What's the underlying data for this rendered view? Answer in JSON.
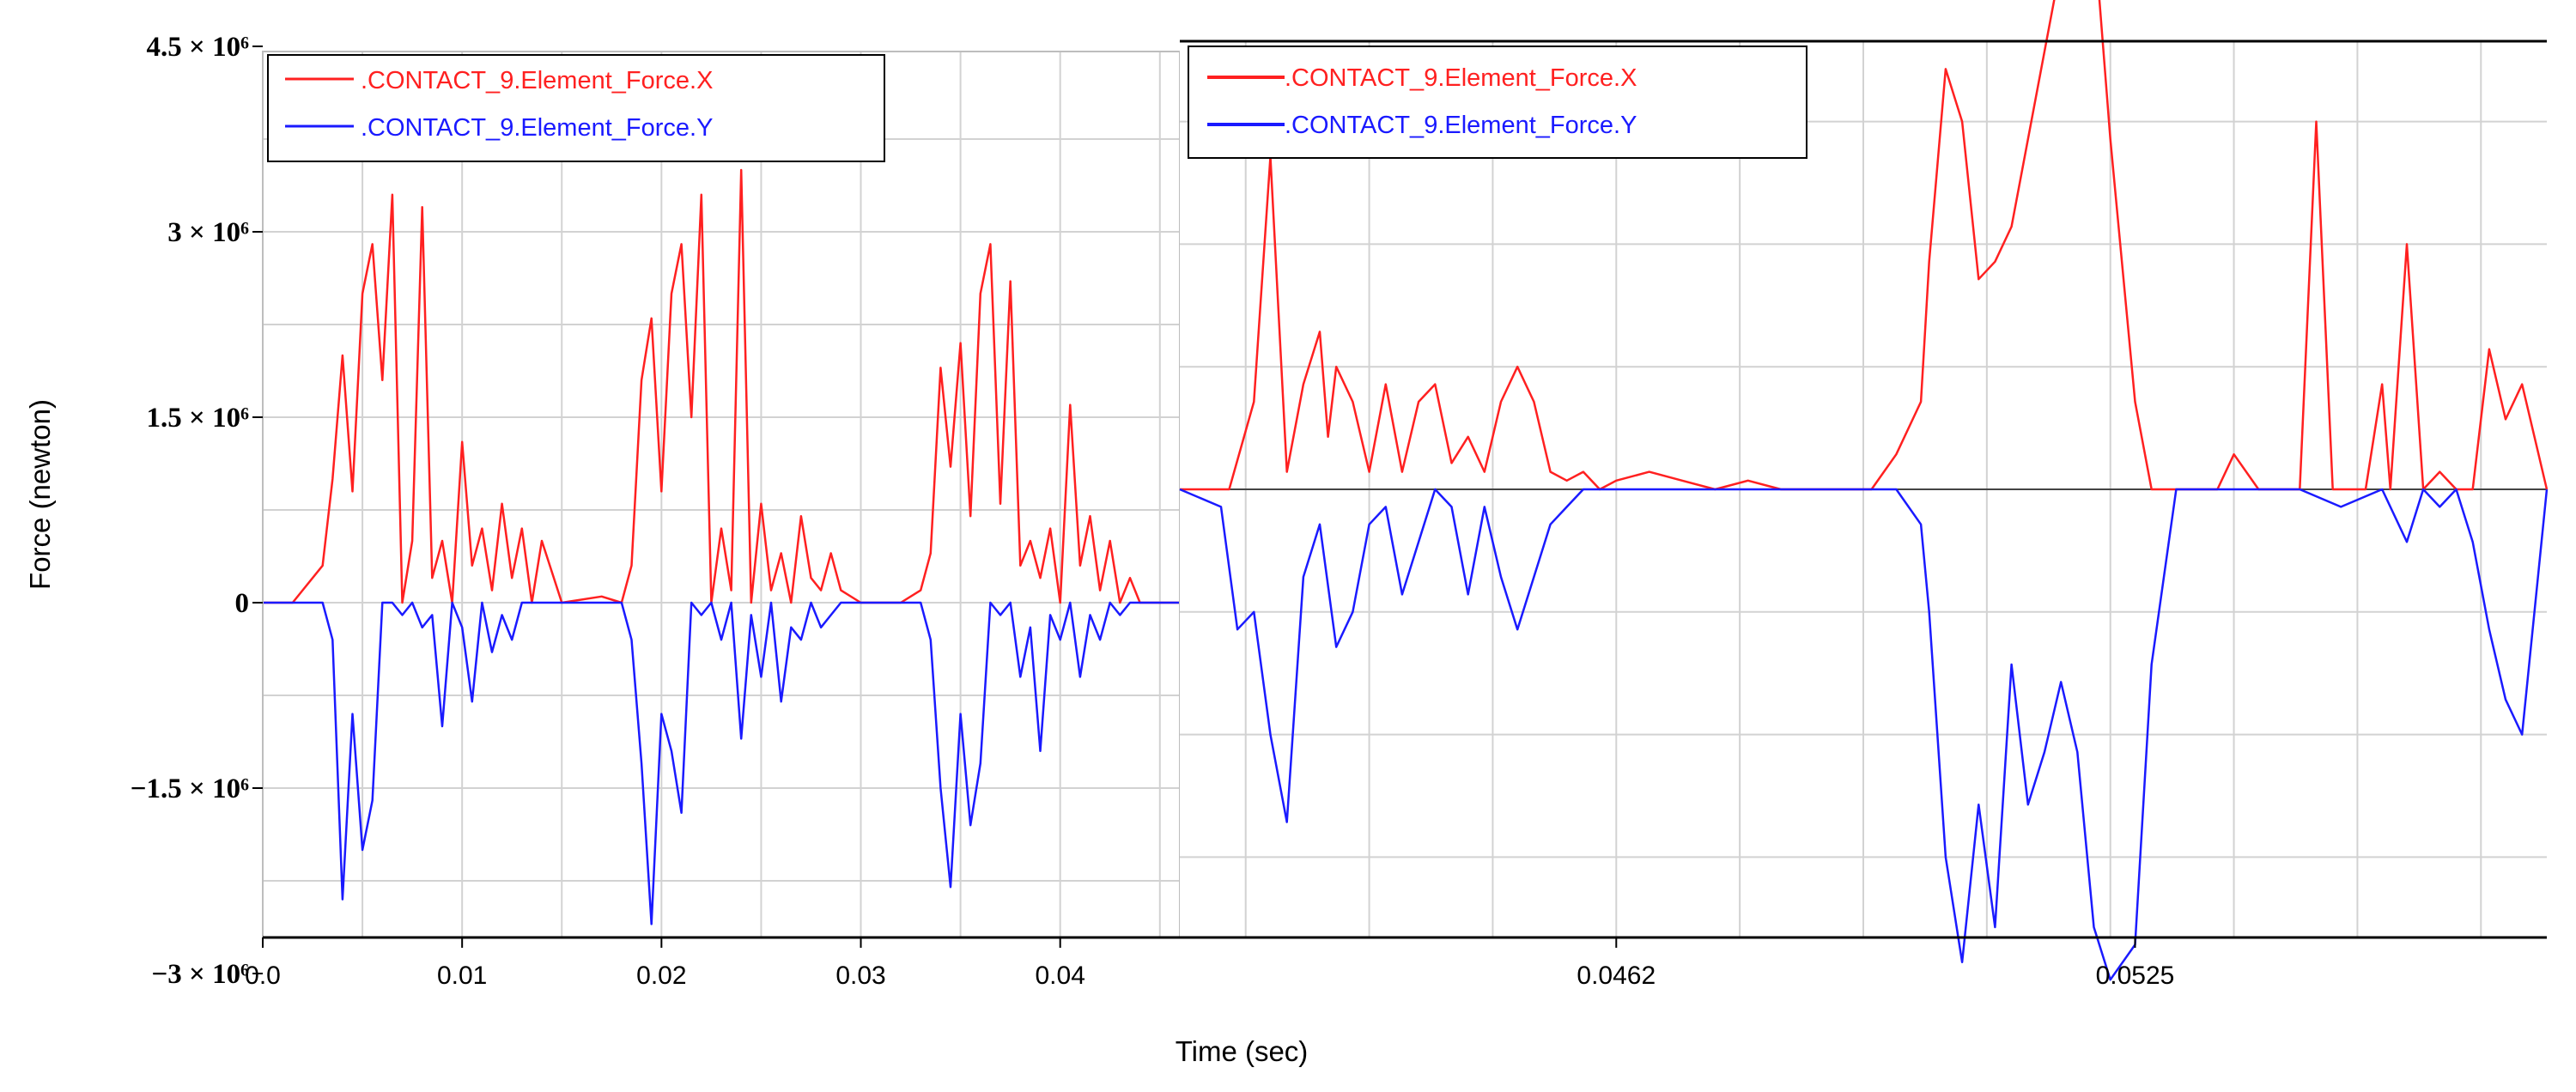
{
  "chart_data": {
    "type": "line",
    "title": "",
    "xlabel": "Time (sec)",
    "ylabel": "Force (newton)",
    "grid": true,
    "yticks": [
      "4.5 × 10⁶",
      "3 × 10⁶",
      "1.5 × 10⁶",
      "0",
      "−1.5 × 10⁶",
      "−3 × 10⁶"
    ],
    "ylim": [
      -3000000,
      4500000
    ],
    "panels": [
      {
        "id": "left",
        "xlim": [
          0,
          0.046
        ],
        "xticks": [
          "0.0",
          "0.01",
          "0.02",
          "0.03",
          "0.04"
        ],
        "legend": "top-left",
        "series": [
          {
            "name": ".CONTACT_9.Element_Force.X",
            "color": "#ff2020",
            "x": [
              0,
              0.0015,
              0.002,
              0.003,
              0.0035,
              0.004,
              0.0045,
              0.005,
              0.0055,
              0.006,
              0.0065,
              0.007,
              0.0075,
              0.008,
              0.0085,
              0.009,
              0.0095,
              0.01,
              0.0105,
              0.011,
              0.0115,
              0.012,
              0.0125,
              0.013,
              0.0135,
              0.014,
              0.015,
              0.017,
              0.018,
              0.0185,
              0.019,
              0.0195,
              0.02,
              0.0205,
              0.021,
              0.0215,
              0.022,
              0.0225,
              0.023,
              0.0235,
              0.024,
              0.0245,
              0.025,
              0.0255,
              0.026,
              0.0265,
              0.027,
              0.0275,
              0.028,
              0.0285,
              0.029,
              0.03,
              0.031,
              0.032,
              0.033,
              0.0335,
              0.034,
              0.0345,
              0.035,
              0.0355,
              0.036,
              0.0365,
              0.037,
              0.0375,
              0.038,
              0.0385,
              0.039,
              0.0395,
              0.04,
              0.0405,
              0.041,
              0.0415,
              0.042,
              0.0425,
              0.043,
              0.0435,
              0.044,
              0.046
            ],
            "y": [
              0,
              0,
              100000,
              300000,
              1000000,
              2000000,
              900000,
              2500000,
              2900000,
              1800000,
              3300000,
              0,
              500000,
              3200000,
              200000,
              500000,
              0,
              1300000,
              300000,
              600000,
              100000,
              800000,
              200000,
              600000,
              0,
              500000,
              0,
              50000,
              0,
              300000,
              1800000,
              2300000,
              900000,
              2500000,
              2900000,
              1500000,
              3300000,
              0,
              600000,
              100000,
              3500000,
              0,
              800000,
              100000,
              400000,
              0,
              700000,
              200000,
              100000,
              400000,
              100000,
              0,
              0,
              0,
              100000,
              400000,
              1900000,
              1100000,
              2100000,
              700000,
              2500000,
              2900000,
              800000,
              2600000,
              300000,
              500000,
              200000,
              600000,
              0,
              1600000,
              300000,
              700000,
              100000,
              500000,
              0,
              200000,
              0,
              0
            ]
          },
          {
            "name": ".CONTACT_9.Element_Force.Y",
            "color": "#1a1aff",
            "x": [
              0,
              0.003,
              0.0035,
              0.004,
              0.0045,
              0.005,
              0.0055,
              0.006,
              0.0065,
              0.007,
              0.0075,
              0.008,
              0.0085,
              0.009,
              0.0095,
              0.01,
              0.0105,
              0.011,
              0.0115,
              0.012,
              0.0125,
              0.013,
              0.0135,
              0.014,
              0.015,
              0.017,
              0.018,
              0.0185,
              0.019,
              0.0195,
              0.02,
              0.0205,
              0.021,
              0.0215,
              0.022,
              0.0225,
              0.023,
              0.0235,
              0.024,
              0.0245,
              0.025,
              0.0255,
              0.026,
              0.0265,
              0.027,
              0.0275,
              0.028,
              0.0285,
              0.029,
              0.03,
              0.031,
              0.032,
              0.033,
              0.0335,
              0.034,
              0.0345,
              0.035,
              0.0355,
              0.036,
              0.0365,
              0.037,
              0.0375,
              0.038,
              0.0385,
              0.039,
              0.0395,
              0.04,
              0.0405,
              0.041,
              0.0415,
              0.042,
              0.0425,
              0.043,
              0.0435,
              0.044,
              0.046
            ],
            "y": [
              0,
              0,
              -300000,
              -2400000,
              -900000,
              -2000000,
              -1600000,
              0,
              0,
              -100000,
              0,
              -200000,
              -100000,
              -1000000,
              0,
              -200000,
              -800000,
              0,
              -400000,
              -100000,
              -300000,
              0,
              0,
              0,
              0,
              0,
              0,
              -300000,
              -1300000,
              -2600000,
              -900000,
              -1200000,
              -1700000,
              0,
              -100000,
              0,
              -300000,
              0,
              -1100000,
              -100000,
              -600000,
              0,
              -800000,
              -200000,
              -300000,
              0,
              -200000,
              -100000,
              0,
              0,
              0,
              0,
              0,
              -300000,
              -1500000,
              -2300000,
              -900000,
              -1800000,
              -1300000,
              0,
              -100000,
              0,
              -600000,
              -200000,
              -1200000,
              -100000,
              -300000,
              0,
              -600000,
              -100000,
              -300000,
              0,
              -100000,
              0,
              0,
              0
            ]
          }
        ]
      },
      {
        "id": "right",
        "xlim": [
          0.0409,
          0.0575
        ],
        "xticks": [
          "0.0462",
          "0.0525"
        ],
        "legend": "top-left",
        "series": [
          {
            "name": ".CONTACT_9.Element_Force.X",
            "color": "#ff2020",
            "x": [
              0.0409,
              0.0415,
              0.0418,
              0.042,
              0.0422,
              0.0424,
              0.0426,
              0.0427,
              0.0428,
              0.043,
              0.0432,
              0.0434,
              0.0436,
              0.0438,
              0.044,
              0.0442,
              0.0444,
              0.0446,
              0.0448,
              0.045,
              0.0452,
              0.0454,
              0.0456,
              0.0458,
              0.046,
              0.0462,
              0.0466,
              0.047,
              0.0474,
              0.0478,
              0.0482,
              0.0485,
              0.049,
              0.0493,
              0.0496,
              0.0499,
              0.05,
              0.0502,
              0.0504,
              0.0506,
              0.0508,
              0.051,
              0.0512,
              0.0514,
              0.0516,
              0.0518,
              0.052,
              0.0522,
              0.0525,
              0.0527,
              0.053,
              0.0532,
              0.0535,
              0.0537,
              0.054,
              0.0542,
              0.0545,
              0.0547,
              0.0549,
              0.0551,
              0.0553,
              0.0555,
              0.0556,
              0.0558,
              0.056,
              0.0562,
              0.0564,
              0.0566,
              0.0568,
              0.057,
              0.0572,
              0.0575
            ],
            "y": [
              0,
              0,
              500000,
              1900000,
              100000,
              600000,
              900000,
              300000,
              700000,
              500000,
              100000,
              600000,
              100000,
              500000,
              600000,
              150000,
              300000,
              100000,
              500000,
              700000,
              500000,
              100000,
              50000,
              100000,
              0,
              50000,
              100000,
              50000,
              0,
              50000,
              0,
              0,
              0,
              0,
              200000,
              500000,
              1300000,
              2400000,
              2100000,
              1200000,
              1300000,
              1500000,
              2000000,
              2500000,
              3000000,
              3400000,
              3200000,
              2000000,
              500000,
              0,
              0,
              0,
              0,
              200000,
              0,
              0,
              0,
              2100000,
              0,
              0,
              0,
              600000,
              0,
              1400000,
              0,
              100000,
              0,
              0,
              800000,
              400000,
              600000,
              0
            ]
          },
          {
            "name": ".CONTACT_9.Element_Force.Y",
            "color": "#1a1aff",
            "x": [
              0.0409,
              0.0414,
              0.0416,
              0.0418,
              0.042,
              0.0422,
              0.0424,
              0.0426,
              0.0428,
              0.043,
              0.0432,
              0.0434,
              0.0436,
              0.0438,
              0.044,
              0.0442,
              0.0444,
              0.0446,
              0.0448,
              0.045,
              0.0452,
              0.0454,
              0.0456,
              0.0458,
              0.046,
              0.0462,
              0.047,
              0.048,
              0.049,
              0.0496,
              0.0499,
              0.05,
              0.0502,
              0.0504,
              0.0506,
              0.0508,
              0.051,
              0.0512,
              0.0514,
              0.0516,
              0.0518,
              0.052,
              0.0522,
              0.0525,
              0.0527,
              0.053,
              0.054,
              0.0545,
              0.055,
              0.0555,
              0.0558,
              0.056,
              0.0562,
              0.0564,
              0.0566,
              0.0568,
              0.057,
              0.0572,
              0.0575
            ],
            "y": [
              0,
              -100000,
              -800000,
              -700000,
              -1400000,
              -1900000,
              -500000,
              -200000,
              -900000,
              -700000,
              -200000,
              -100000,
              -600000,
              -300000,
              0,
              -100000,
              -600000,
              -100000,
              -500000,
              -800000,
              -500000,
              -200000,
              -100000,
              0,
              0,
              0,
              0,
              0,
              0,
              0,
              -200000,
              -700000,
              -2100000,
              -2700000,
              -1800000,
              -2500000,
              -1000000,
              -1800000,
              -1500000,
              -1100000,
              -1500000,
              -2500000,
              -2800000,
              -2600000,
              -1000000,
              0,
              0,
              0,
              -100000,
              0,
              -300000,
              0,
              -100000,
              0,
              -300000,
              -800000,
              -1200000,
              -1400000,
              0
            ]
          }
        ]
      }
    ]
  }
}
